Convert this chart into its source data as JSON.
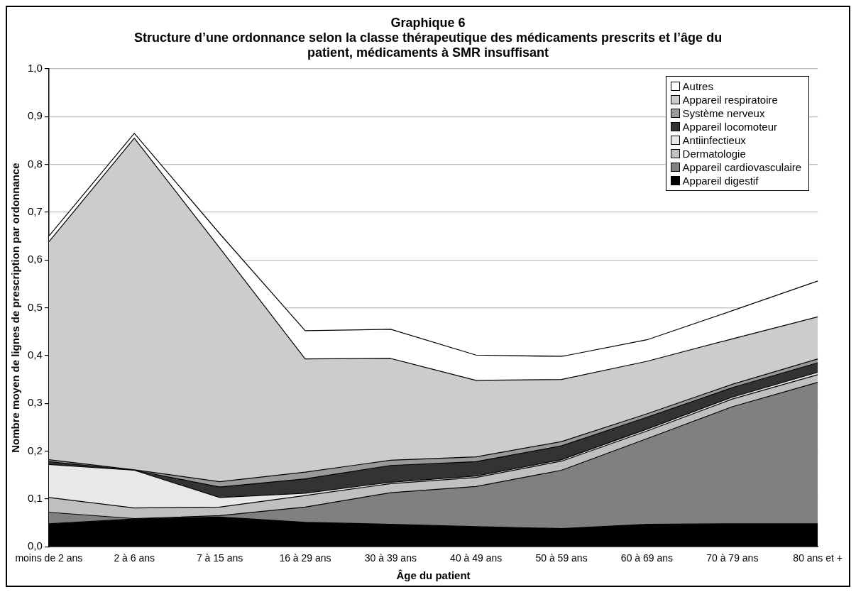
{
  "chart_data": {
    "type": "area",
    "stacked": true,
    "title": "Graphique 6",
    "subtitle": "Structure d’une ordonnance selon la classe thérapeutique des médicaments prescrits et l’âge du patient, médicaments à SMR insuffisant",
    "xlabel": "Âge du patient",
    "ylabel": "Nombre moyen de lignes de prescription par ordonnance",
    "categories": [
      "moins de 2 ans",
      "2 à 6 ans",
      "7 à 15 ans",
      "16 à 29 ans",
      "30 à 39 ans",
      "40 à 49 ans",
      "50 à 59 ans",
      "60 à 69 ans",
      "70 à 79 ans",
      "80 ans et +"
    ],
    "series": [
      {
        "name": "Appareil digestif",
        "color": "#000000",
        "values": [
          0.048,
          0.058,
          0.062,
          0.051,
          0.047,
          0.042,
          0.038,
          0.047,
          0.048,
          0.048
        ]
      },
      {
        "name": "Appareil cardiovasculaire",
        "color": "#808080",
        "values": [
          0.024,
          0.001,
          0.003,
          0.032,
          0.066,
          0.084,
          0.122,
          0.179,
          0.245,
          0.296
        ]
      },
      {
        "name": "Dermatologie",
        "color": "#c0c0c0",
        "values": [
          0.031,
          0.022,
          0.018,
          0.024,
          0.019,
          0.019,
          0.019,
          0.016,
          0.016,
          0.016
        ]
      },
      {
        "name": "Antiinfectieux",
        "color": "#e8e8e8",
        "values": [
          0.069,
          0.079,
          0.02,
          0.005,
          0.003,
          0.003,
          0.003,
          0.004,
          0.004,
          0.005
        ]
      },
      {
        "name": "Appareil locomoteur",
        "color": "#333333",
        "values": [
          0.006,
          0.0,
          0.022,
          0.03,
          0.035,
          0.03,
          0.029,
          0.025,
          0.02,
          0.02
        ]
      },
      {
        "name": "Système nerveux",
        "color": "#999999",
        "values": [
          0.004,
          0.001,
          0.011,
          0.014,
          0.011,
          0.01,
          0.009,
          0.007,
          0.007,
          0.008
        ]
      },
      {
        "name": "Appareil respiratoire",
        "color": "#cccccc",
        "values": [
          0.456,
          0.694,
          0.489,
          0.237,
          0.213,
          0.16,
          0.13,
          0.11,
          0.095,
          0.088
        ]
      },
      {
        "name": "Autres",
        "color": "#ffffff",
        "values": [
          0.012,
          0.01,
          0.03,
          0.059,
          0.061,
          0.053,
          0.048,
          0.045,
          0.059,
          0.075
        ]
      }
    ],
    "ylim": [
      0,
      1
    ],
    "yticks": [
      {
        "value": 0,
        "label": "0,0"
      },
      {
        "value": 0.1,
        "label": "0,1"
      },
      {
        "value": 0.2,
        "label": "0,2"
      },
      {
        "value": 0.3,
        "label": "0,3"
      },
      {
        "value": 0.4,
        "label": "0,4"
      },
      {
        "value": 0.5,
        "label": "0,5"
      },
      {
        "value": 0.6,
        "label": "0,6"
      },
      {
        "value": 0.7,
        "label": "0,7"
      },
      {
        "value": 0.8,
        "label": "0,8"
      },
      {
        "value": 0.9,
        "label": "0,9"
      },
      {
        "value": 1,
        "label": "1,0"
      }
    ],
    "grid": "y",
    "legend": "top right",
    "marker": "none"
  }
}
